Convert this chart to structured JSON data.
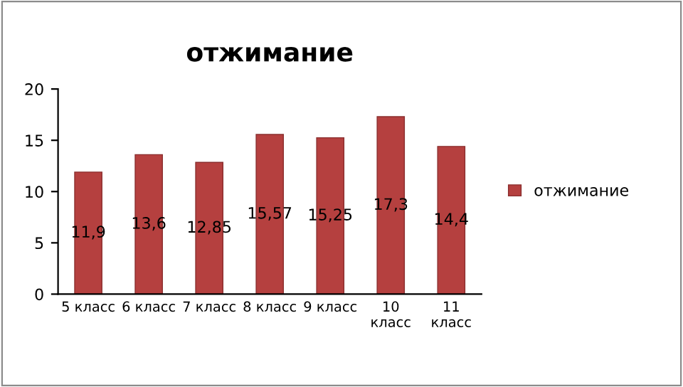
{
  "chart_data": {
    "type": "bar",
    "title": "отжимание",
    "categories": [
      "5 класс",
      "6 класс",
      "7 класс",
      "8 класс",
      "9 класс",
      "10 класс",
      "11 класс"
    ],
    "series": [
      {
        "name": "отжимание",
        "color": "#b5403f",
        "values": [
          11.9,
          13.6,
          12.85,
          15.57,
          15.25,
          17.3,
          14.4
        ],
        "value_labels": [
          "11,9",
          "13,6",
          "12,85",
          "15,57",
          "15,25",
          "17,3",
          "14,4"
        ]
      }
    ],
    "ylim": [
      0,
      20
    ],
    "yticks": [
      0,
      5,
      10,
      15,
      20
    ],
    "grid": false,
    "legend": "right"
  }
}
